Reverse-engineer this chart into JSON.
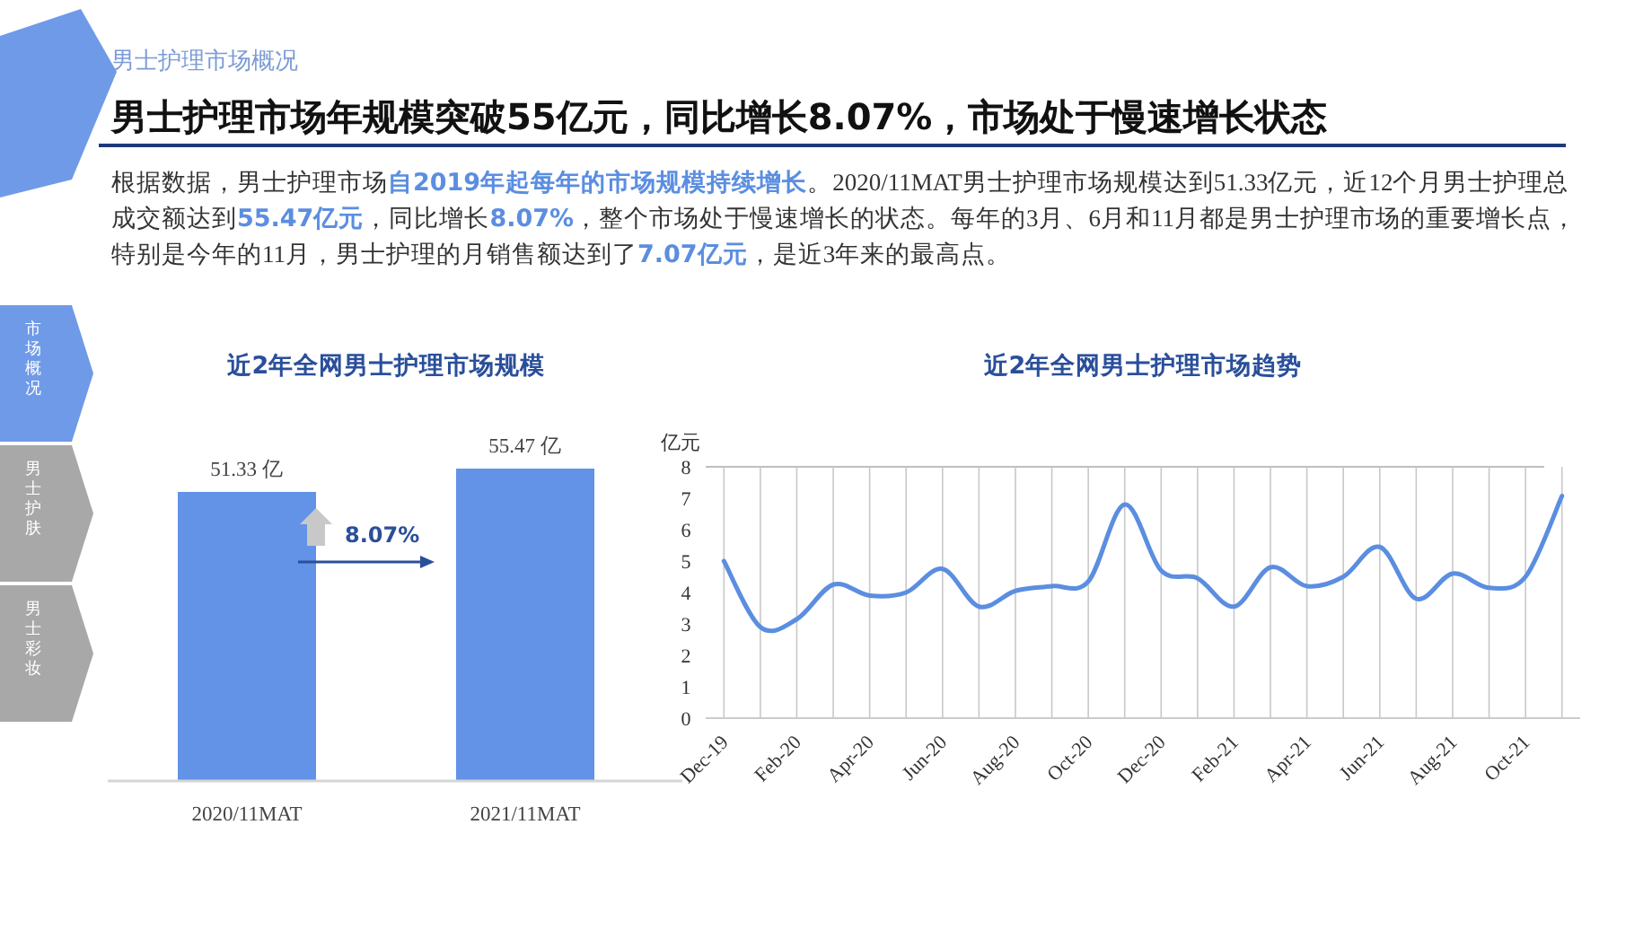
{
  "chart_data": [
    {
      "type": "other",
      "subtitle": "男士护理市场概况",
      "title": "男士护理市场年规模突破55亿元，同比增长8.07%，市场处于慢速增长状态",
      "annotations": [
        "根据数据，男士护理市场**自2019年起每年的市场规模持续增长**。2020/11MAT男士护理市场规模达到51.33亿元，近12个月男士护理总成交额达到**55.47亿元**，同比增长**8.07%**，整个市场处于慢速增长的状态。每年的3月、6月和11月都是男士护理市场的重要增长点，特别是今年的11月，男士护理的月销售额达到了**7.07亿元**，是近3年来的最高点。",
        "市场概况",
        "男士护肤",
        "男士彩妆"
      ]
    },
    {
      "type": "bar",
      "title": "近2年全网男士护理市场规模",
      "categories": [
        "2020/11MAT",
        "2021/11MAT"
      ],
      "values": [
        51.33,
        55.47
      ],
      "color": "#6393e6",
      "value_labels": [
        "51.33 亿",
        "55.47 亿"
      ],
      "annotations": [
        "8.07%"
      ]
    },
    {
      "type": "line",
      "title": "近2年全网男士护理市场趋势",
      "ylabel": "亿元",
      "ylim": [
        0,
        8
      ],
      "yticks": [
        0,
        1,
        2,
        3,
        4,
        5,
        6,
        7,
        8
      ],
      "grid": "x",
      "color": "#5b8ee0",
      "marker": "none",
      "categories": [
        "Dec-19",
        null,
        "Feb-20",
        null,
        "Apr-20",
        null,
        "Jun-20",
        null,
        "Aug-20",
        null,
        "Oct-20",
        null,
        "Dec-20",
        null,
        "Feb-21",
        null,
        "Apr-21",
        null,
        "Jun-21",
        null,
        "Aug-21",
        null,
        "Oct-21",
        null
      ],
      "values": [
        5.0,
        2.9,
        3.15,
        4.25,
        3.9,
        4.0,
        4.75,
        3.55,
        4.05,
        4.2,
        4.35,
        6.8,
        4.7,
        4.45,
        3.55,
        4.8,
        4.2,
        4.5,
        5.45,
        3.8,
        4.6,
        4.15,
        4.5,
        7.07
      ]
    }
  ]
}
